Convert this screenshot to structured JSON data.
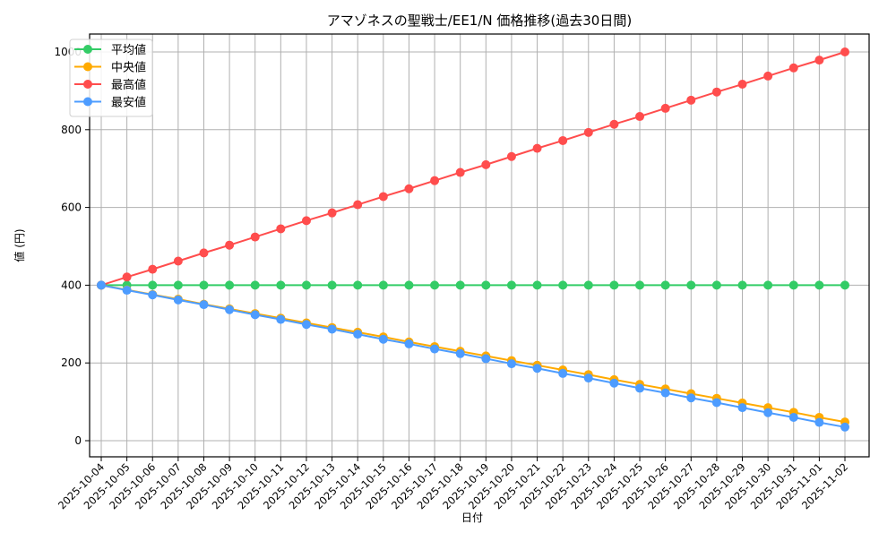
{
  "chart_data": {
    "type": "line",
    "title": "アマゾネスの聖戦士/EE1/N 価格推移(過去30日間)",
    "xlabel": "日付",
    "ylabel": "値 (円)",
    "ylim": [
      0,
      1050
    ],
    "yticks": [
      0,
      200,
      400,
      600,
      800,
      1000
    ],
    "grid": true,
    "legend_position": "upper left",
    "categories": [
      "2025-10-04",
      "2025-10-05",
      "2025-10-06",
      "2025-10-07",
      "2025-10-08",
      "2025-10-09",
      "2025-10-10",
      "2025-10-11",
      "2025-10-12",
      "2025-10-13",
      "2025-10-14",
      "2025-10-15",
      "2025-10-16",
      "2025-10-17",
      "2025-10-18",
      "2025-10-19",
      "2025-10-20",
      "2025-10-21",
      "2025-10-22",
      "2025-10-23",
      "2025-10-24",
      "2025-10-25",
      "2025-10-26",
      "2025-10-27",
      "2025-10-28",
      "2025-10-29",
      "2025-10-30",
      "2025-10-31",
      "2025-11-01",
      "2025-11-02"
    ],
    "series": [
      {
        "name": "平均値",
        "color": "#33cc66",
        "values": [
          400,
          400,
          400,
          400,
          400,
          400,
          400,
          400,
          400,
          400,
          400,
          400,
          400,
          400,
          400,
          400,
          400,
          400,
          400,
          400,
          400,
          400,
          400,
          400,
          400,
          400,
          400,
          400,
          400,
          400
        ]
      },
      {
        "name": "中央値",
        "color": "#ffaa00",
        "values": [
          400,
          388,
          376,
          364,
          351,
          339,
          327,
          315,
          303,
          291,
          279,
          267,
          254,
          242,
          230,
          218,
          206,
          194,
          182,
          170,
          157,
          145,
          133,
          121,
          109,
          97,
          85,
          73,
          60,
          48
        ]
      },
      {
        "name": "最高値",
        "color": "#ff4d4d",
        "values": [
          400,
          421,
          441,
          462,
          483,
          503,
          524,
          545,
          566,
          586,
          607,
          628,
          648,
          669,
          690,
          710,
          731,
          752,
          772,
          793,
          814,
          834,
          855,
          876,
          897,
          917,
          938,
          959,
          979,
          1000
        ]
      },
      {
        "name": "最安値",
        "color": "#4d9cff",
        "values": [
          400,
          387,
          375,
          362,
          350,
          337,
          324,
          312,
          299,
          287,
          274,
          261,
          249,
          236,
          224,
          211,
          198,
          186,
          173,
          161,
          148,
          135,
          123,
          110,
          98,
          85,
          72,
          60,
          47,
          35
        ]
      }
    ]
  }
}
